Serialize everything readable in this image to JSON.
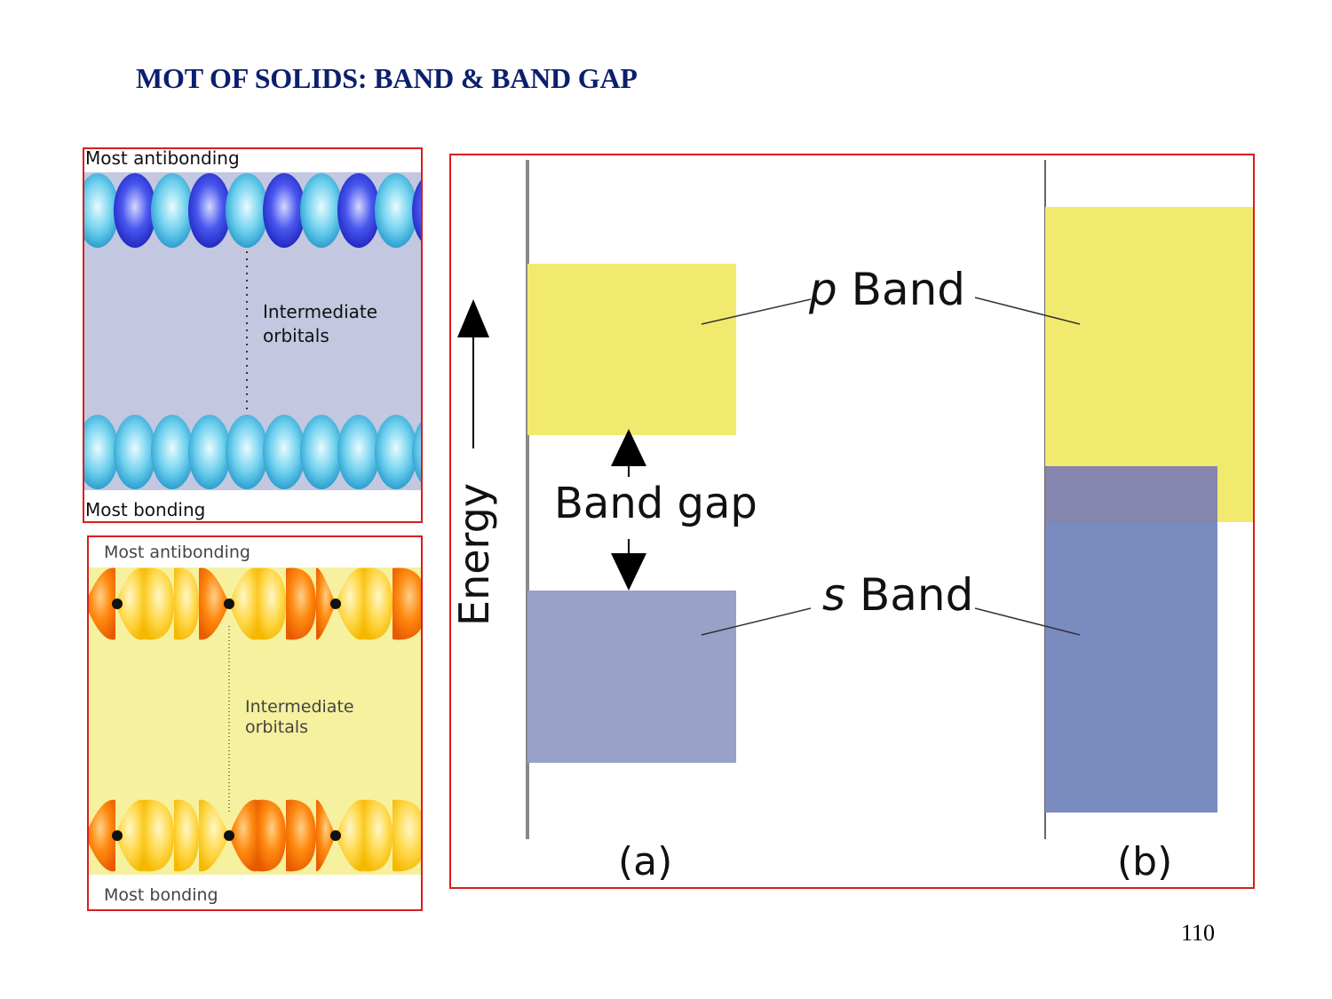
{
  "slide": {
    "title": "MOT OF SOLIDS: BAND & BAND GAP",
    "page_number": "110"
  },
  "s_orbital_panel": {
    "top_label": "Most antibonding",
    "middle_label_line1": "Intermediate",
    "middle_label_line2": "orbitals",
    "bottom_label": "Most bonding"
  },
  "p_orbital_panel": {
    "top_label": "Most antibonding",
    "middle_label_line1": "Intermediate",
    "middle_label_line2": "orbitals",
    "bottom_label": "Most bonding"
  },
  "band_diagram": {
    "axis_label": "Energy",
    "p_band_letter": "p",
    "s_band_letter": "s",
    "band_word": "Band",
    "band_gap_label": "Band gap",
    "case_a_label": "(a)",
    "case_b_label": "(b)",
    "colors": {
      "p_band": "#f2ea6e",
      "s_band_a": "#98a1c6",
      "s_band_b": "#7a8bbf",
      "overlap": "#8585ad"
    }
  }
}
